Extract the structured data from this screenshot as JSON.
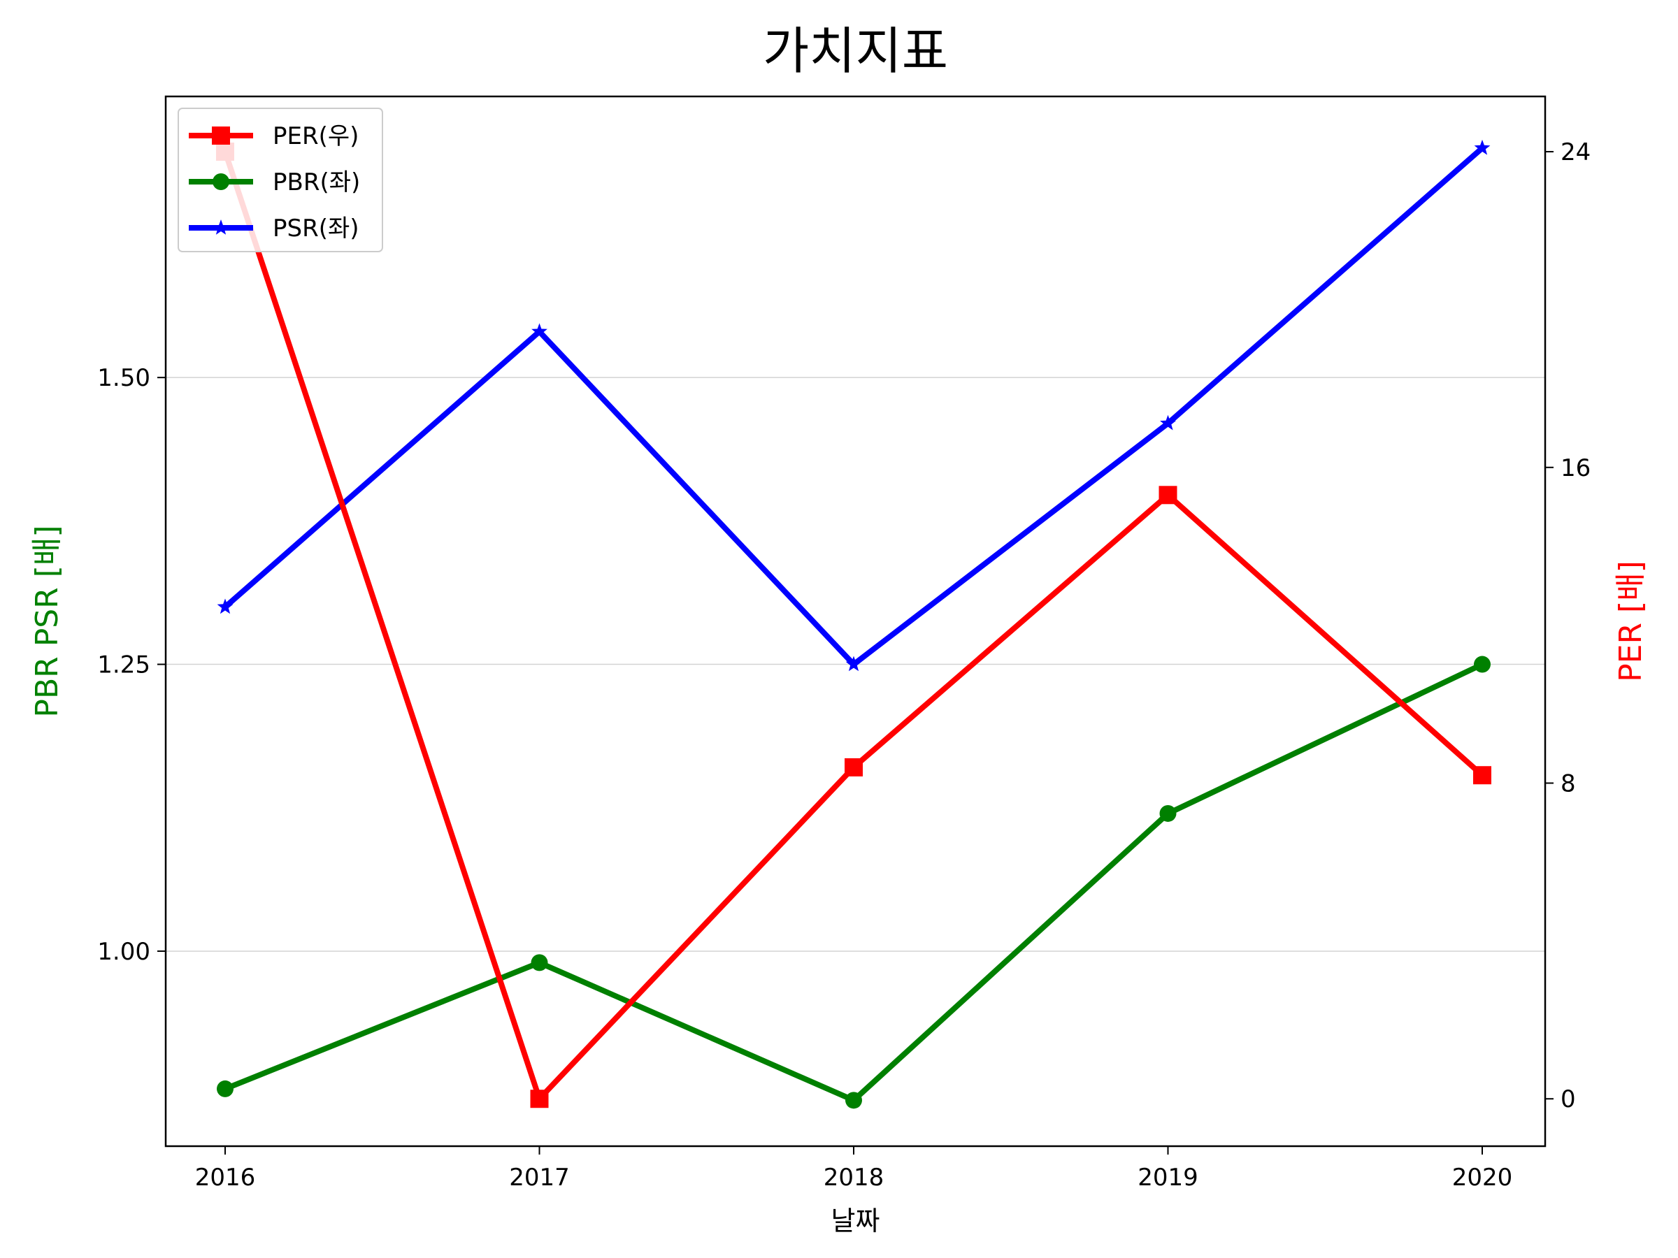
{
  "chart_data": {
    "type": "line",
    "title": "가치지표",
    "xlabel": "날짜",
    "ylabel_left": "PBR PSR [배]",
    "ylabel_right": "PER [배]",
    "ylabel_left_color": "#008000",
    "ylabel_right_color": "#ff0000",
    "categories": [
      "2016",
      "2017",
      "2018",
      "2019",
      "2020"
    ],
    "left_axis": {
      "ylim": [
        0.83,
        1.745
      ],
      "ticks": [
        1.0,
        1.25,
        1.5
      ],
      "tick_labels": [
        "1.00",
        "1.25",
        "1.50"
      ]
    },
    "right_axis": {
      "ylim": [
        -1.2,
        25.4
      ],
      "ticks": [
        0,
        8,
        16,
        24
      ],
      "tick_labels": [
        "0",
        "8",
        "16",
        "24"
      ]
    },
    "grid": {
      "axis": "y",
      "color": "#d3d3d3"
    },
    "legend": "top-left",
    "series": [
      {
        "name": "PER(우)",
        "axis": "right",
        "color": "#ff0000",
        "marker": "square",
        "values": [
          24.0,
          0.0,
          8.4,
          15.3,
          8.2
        ]
      },
      {
        "name": "PBR(좌)",
        "axis": "left",
        "color": "#008000",
        "marker": "circle",
        "values": [
          0.88,
          0.99,
          0.87,
          1.12,
          1.25
        ]
      },
      {
        "name": "PSR(좌)",
        "axis": "left",
        "color": "#0000ff",
        "marker": "star",
        "values": [
          1.3,
          1.54,
          1.25,
          1.46,
          1.7
        ]
      }
    ]
  }
}
